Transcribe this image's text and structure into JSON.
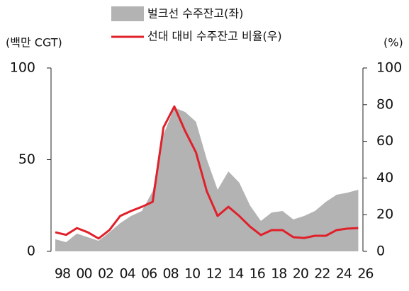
{
  "chart_data": {
    "type": "area_line",
    "y_label": "(백만 CGT)",
    "y2_label": "(%)",
    "x": [
      1998,
      1999,
      2000,
      2001,
      2002,
      2003,
      2004,
      2005,
      2006,
      2007,
      2008,
      2009,
      2010,
      2011,
      2012,
      2013,
      2014,
      2015,
      2016,
      2017,
      2018,
      2019,
      2020,
      2021,
      2022,
      2023,
      2024,
      2025,
      2026
    ],
    "series": [
      {
        "name": "벌크선 수주잔고(좌)",
        "color": "#b3b3b3",
        "kind": "area",
        "values": [
          6.6,
          5.0,
          9.7,
          7.7,
          5.8,
          10.4,
          15.4,
          19.3,
          22.0,
          32.8,
          63.7,
          78.4,
          76.0,
          70.7,
          50.2,
          33.6,
          43.6,
          37.5,
          25.0,
          16.6,
          21.2,
          22.0,
          17.4,
          19.3,
          22.0,
          27.0,
          30.9,
          32.0,
          33.6
        ]
      },
      {
        "name": "선대 대비 수주잔고 비율(우)",
        "color": "#e0202a",
        "kind": "line",
        "axis": "y2",
        "values": [
          10.4,
          9.0,
          12.7,
          10.4,
          7.0,
          11.6,
          19.3,
          22.0,
          24.3,
          27.0,
          67.6,
          79.0,
          65.6,
          54.0,
          32.8,
          19.3,
          24.3,
          19.3,
          13.5,
          8.9,
          11.6,
          11.6,
          7.7,
          7.3,
          8.5,
          8.5,
          11.6,
          12.4,
          12.7
        ]
      }
    ],
    "xlim": [
      1998,
      2026.3
    ],
    "xticks": [
      {
        "value": 1998,
        "label": "98"
      },
      {
        "value": 2000,
        "label": "00"
      },
      {
        "value": 2002,
        "label": "02"
      },
      {
        "value": 2004,
        "label": "04"
      },
      {
        "value": 2006,
        "label": "06"
      },
      {
        "value": 2008,
        "label": "08"
      },
      {
        "value": 2010,
        "label": "10"
      },
      {
        "value": 2012,
        "label": "12"
      },
      {
        "value": 2014,
        "label": "14"
      },
      {
        "value": 2016,
        "label": "16"
      },
      {
        "value": 2018,
        "label": "18"
      },
      {
        "value": 2020,
        "label": "20"
      },
      {
        "value": 2022,
        "label": "22"
      },
      {
        "value": 2024,
        "label": "24"
      },
      {
        "value": 2026,
        "label": "26"
      }
    ],
    "ylim": [
      0,
      100
    ],
    "yticks": [
      0,
      50,
      100
    ],
    "y2lim": [
      0,
      100
    ],
    "y2ticks": [
      0,
      20,
      40,
      60,
      80,
      100
    ]
  }
}
